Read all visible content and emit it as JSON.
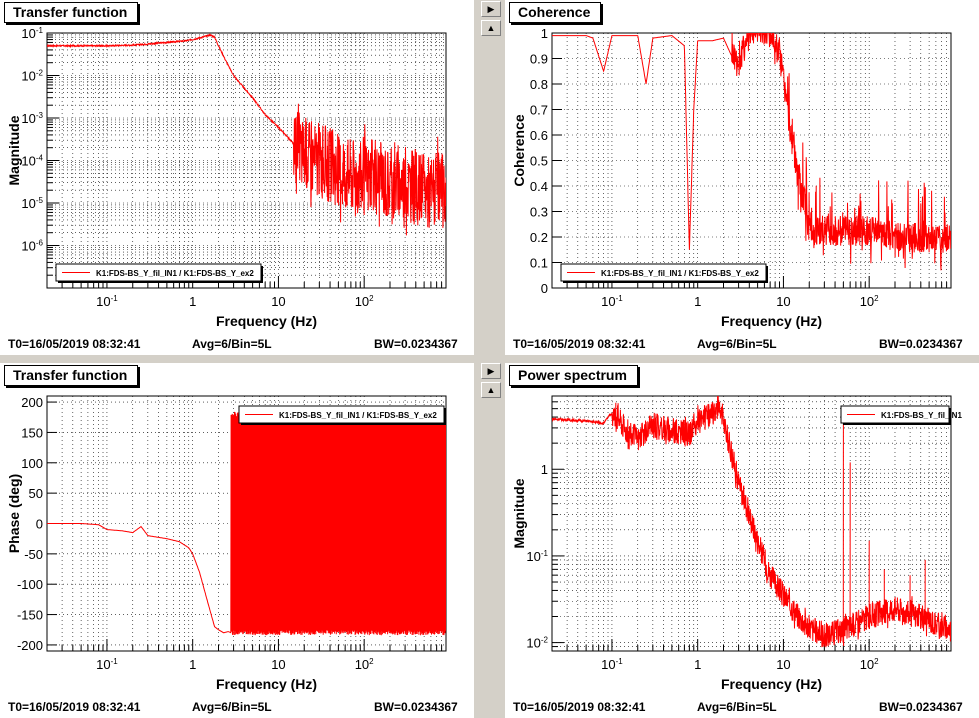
{
  "panels": [
    {
      "id": "tf_mag",
      "title": "Transfer function",
      "footer": {
        "t0": "T0=16/05/2019 08:32:41",
        "avg": "Avg=6/Bin=5L",
        "bw": "BW=0.0234367"
      },
      "chart_data": {
        "type": "line",
        "title": "Transfer function",
        "xlabel": "Frequency (Hz)",
        "ylabel": "Magnitude",
        "x_scale": "log",
        "y_scale": "log",
        "xlim": [
          0.02,
          900
        ],
        "ylim": [
          1e-07,
          0.1
        ],
        "x_ticks": [
          {
            "v": 0.1,
            "label": "10^-1"
          },
          {
            "v": 1,
            "label": "1"
          },
          {
            "v": 10,
            "label": "10"
          },
          {
            "v": 100,
            "label": "10^2"
          }
        ],
        "y_ticks": [
          {
            "v": 1e-06,
            "label": "10^-6"
          },
          {
            "v": 1e-05,
            "label": "10^-5"
          },
          {
            "v": 0.0001,
            "label": "10^-4"
          },
          {
            "v": 0.001,
            "label": "10^-3"
          },
          {
            "v": 0.01,
            "label": "10^-2"
          },
          {
            "v": 0.1,
            "label": "10^-1"
          }
        ],
        "grid": true,
        "legend": {
          "position": "bottom-left",
          "entries": [
            "K1:FDS-BS_Y_fil_IN1 / K1:FDS-BS_Y_ex2"
          ]
        },
        "series": [
          {
            "name": "K1:FDS-BS_Y_fil_IN1 / K1:FDS-BS_Y_ex2",
            "color": "#ff0000",
            "x": [
              0.02,
              0.05,
              0.1,
              0.2,
              0.3,
              0.5,
              0.8,
              1.0,
              1.3,
              1.6,
              1.8,
              2.0,
              2.5,
              3,
              4,
              5,
              7,
              10,
              15,
              20,
              30,
              40,
              50,
              70,
              100,
              150,
              200,
              300,
              500,
              900
            ],
            "y": [
              0.05,
              0.05,
              0.05,
              0.052,
              0.055,
              0.06,
              0.065,
              0.07,
              0.08,
              0.09,
              0.08,
              0.05,
              0.02,
              0.01,
              0.005,
              0.003,
              0.0012,
              0.0006,
              0.00025,
              0.00015,
              0.0001,
              8e-05,
              6e-05,
              5e-05,
              4e-05,
              4e-05,
              3e-05,
              3e-05,
              2e-05,
              2e-05
            ],
            "noise_from_x": 15,
            "noise_decades": 0.9
          }
        ]
      }
    },
    {
      "id": "coh",
      "title": "Coherence",
      "footer": {
        "t0": "T0=16/05/2019 08:32:41",
        "avg": "Avg=6/Bin=5L",
        "bw": "BW=0.0234367"
      },
      "chart_data": {
        "type": "line",
        "title": "Coherence",
        "xlabel": "Frequency (Hz)",
        "ylabel": "Coherence",
        "x_scale": "log",
        "y_scale": "linear",
        "xlim": [
          0.02,
          900
        ],
        "ylim": [
          0,
          1
        ],
        "x_ticks": [
          {
            "v": 0.1,
            "label": "10^-1"
          },
          {
            "v": 1,
            "label": "1"
          },
          {
            "v": 10,
            "label": "10"
          },
          {
            "v": 100,
            "label": "10^2"
          }
        ],
        "y_ticks": [
          {
            "v": 0,
            "label": "0"
          },
          {
            "v": 0.1,
            "label": "0.1"
          },
          {
            "v": 0.2,
            "label": "0.2"
          },
          {
            "v": 0.3,
            "label": "0.3"
          },
          {
            "v": 0.4,
            "label": "0.4"
          },
          {
            "v": 0.5,
            "label": "0.5"
          },
          {
            "v": 0.6,
            "label": "0.6"
          },
          {
            "v": 0.7,
            "label": "0.7"
          },
          {
            "v": 0.8,
            "label": "0.8"
          },
          {
            "v": 0.9,
            "label": "0.9"
          },
          {
            "v": 1,
            "label": "1"
          }
        ],
        "grid": true,
        "legend": {
          "position": "bottom-left",
          "entries": [
            "K1:FDS-BS_Y_fil_IN1 / K1:FDS-BS_Y_ex2"
          ]
        },
        "series": [
          {
            "name": "K1:FDS-BS_Y_fil_IN1 / K1:FDS-BS_Y_ex2",
            "color": "#ff0000",
            "x": [
              0.02,
              0.05,
              0.06,
              0.08,
              0.1,
              0.2,
              0.25,
              0.3,
              0.5,
              0.7,
              0.8,
              0.9,
              1.0,
              1.5,
              2,
              3,
              4,
              5,
              7,
              9,
              10,
              12,
              15,
              18,
              20,
              30,
              50,
              100,
              200,
              500,
              900
            ],
            "y": [
              0.99,
              0.99,
              0.98,
              0.85,
              0.99,
              0.99,
              0.8,
              0.98,
              0.99,
              0.95,
              0.15,
              0.7,
              0.97,
              0.97,
              0.98,
              0.85,
              0.99,
              0.99,
              0.98,
              0.9,
              0.8,
              0.6,
              0.4,
              0.3,
              0.2,
              0.2,
              0.2,
              0.2,
              0.18,
              0.17,
              0.18
            ],
            "noise_from_x": 2.5,
            "noise_amp": 0.12
          }
        ]
      }
    },
    {
      "id": "tf_phase",
      "title": "Transfer function",
      "footer": {
        "t0": "T0=16/05/2019 08:32:41",
        "avg": "Avg=6/Bin=5L",
        "bw": "BW=0.0234367"
      },
      "chart_data": {
        "type": "line",
        "title": "Transfer function",
        "xlabel": "Frequency (Hz)",
        "ylabel": "Phase (deg)",
        "x_scale": "log",
        "y_scale": "linear",
        "xlim": [
          0.02,
          900
        ],
        "ylim": [
          -210,
          210
        ],
        "x_ticks": [
          {
            "v": 0.1,
            "label": "10^-1"
          },
          {
            "v": 1,
            "label": "1"
          },
          {
            "v": 10,
            "label": "10"
          },
          {
            "v": 100,
            "label": "10^2"
          }
        ],
        "y_ticks": [
          {
            "v": -200,
            "label": "-200"
          },
          {
            "v": -150,
            "label": "-150"
          },
          {
            "v": -100,
            "label": "-100"
          },
          {
            "v": -50,
            "label": "-50"
          },
          {
            "v": 0,
            "label": "0"
          },
          {
            "v": 50,
            "label": "50"
          },
          {
            "v": 100,
            "label": "100"
          },
          {
            "v": 150,
            "label": "150"
          },
          {
            "v": 200,
            "label": "200"
          }
        ],
        "grid": true,
        "legend": {
          "position": "top-right",
          "entries": [
            "K1:FDS-BS_Y_fil_IN1 / K1:FDS-BS_Y_ex2"
          ]
        },
        "series": [
          {
            "name": "K1:FDS-BS_Y_fil_IN1 / K1:FDS-BS_Y_ex2",
            "color": "#ff0000",
            "x": [
              0.02,
              0.05,
              0.08,
              0.1,
              0.15,
              0.2,
              0.25,
              0.3,
              0.5,
              0.7,
              0.9,
              1.0,
              1.2,
              1.5,
              1.8,
              2.0,
              2.3,
              2.6,
              2.8
            ],
            "y": [
              0,
              0,
              -2,
              -10,
              -12,
              -15,
              -5,
              -20,
              -25,
              -30,
              -40,
              -50,
              -80,
              -130,
              -170,
              -175,
              -180,
              -178,
              -180
            ],
            "wrap_from_x": 2.8,
            "wrap_range": [
              -180,
              180
            ]
          }
        ]
      }
    },
    {
      "id": "psd",
      "title": "Power spectrum",
      "footer": {
        "t0": "T0=16/05/2019 08:32:41",
        "avg": "Avg=6/Bin=5L",
        "bw": "BW=0.0234367"
      },
      "chart_data": {
        "type": "line",
        "title": "Power spectrum",
        "xlabel": "Frequency (Hz)",
        "ylabel": "Magnitude",
        "x_scale": "log",
        "y_scale": "log",
        "xlim": [
          0.02,
          900
        ],
        "ylim": [
          0.008,
          7
        ],
        "x_ticks": [
          {
            "v": 0.1,
            "label": "10^-1"
          },
          {
            "v": 1,
            "label": "1"
          },
          {
            "v": 10,
            "label": "10"
          },
          {
            "v": 100,
            "label": "10^2"
          }
        ],
        "y_ticks": [
          {
            "v": 0.01,
            "label": "10^-2"
          },
          {
            "v": 0.1,
            "label": "10^-1"
          },
          {
            "v": 1,
            "label": "1"
          }
        ],
        "grid": true,
        "legend": {
          "position": "top-right",
          "entries": [
            "K1:FDS-BS_Y_fil_IN1"
          ]
        },
        "series": [
          {
            "name": "K1:FDS-BS_Y_fil_IN1",
            "color": "#ff0000",
            "x": [
              0.02,
              0.05,
              0.08,
              0.1,
              0.12,
              0.15,
              0.2,
              0.3,
              0.5,
              0.8,
              1.0,
              1.5,
              1.8,
              2.0,
              2.5,
              3,
              4,
              5,
              7,
              10,
              15,
              20,
              30,
              50,
              100,
              200,
              500,
              900
            ],
            "y": [
              3.8,
              3.6,
              3.4,
              4.5,
              4.0,
              2.8,
              2.3,
              3.2,
              2.8,
              2.6,
              3.5,
              4.5,
              6.0,
              3.5,
              1.5,
              0.7,
              0.3,
              0.15,
              0.06,
              0.035,
              0.02,
              0.015,
              0.012,
              0.014,
              0.02,
              0.025,
              0.018,
              0.014
            ],
            "spikes": [
              {
                "x": 50,
                "y": 4.0
              },
              {
                "x": 60,
                "y": 1.2
              },
              {
                "x": 100,
                "y": 0.15
              },
              {
                "x": 150,
                "y": 0.07
              },
              {
                "x": 300,
                "y": 0.06
              },
              {
                "x": 450,
                "y": 0.09
              }
            ],
            "noise_from_x": 0.1,
            "noise_decades": 0.15
          }
        ]
      }
    }
  ]
}
